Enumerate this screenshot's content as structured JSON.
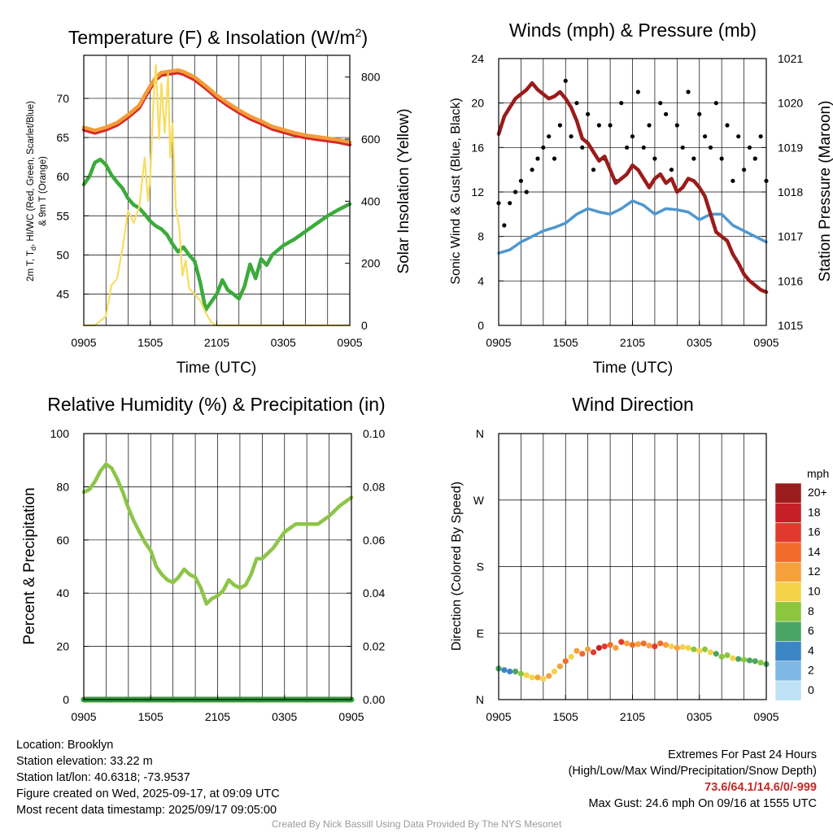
{
  "panels": {
    "temperature": {
      "title": "Temperature (F) & Insolation (W/m",
      "title_sup": "2",
      "title_close": ")",
      "ylabel_left_lines": [
        "2m T, T",
        "d",
        ", HI/WC (Red, Green, Scarlet/Blue)",
        "& 9m T (Orange)"
      ],
      "ylabel_right": "Solar Insolation (Yellow)",
      "xlabel": "Time (UTC)"
    },
    "winds": {
      "title": "Winds (mph) & Pressure (mb)",
      "ylabel_left": "Sonic Wind & Gust (Blue, Black)",
      "ylabel_right": "Station Pressure (Maroon)",
      "xlabel": "Time (UTC)"
    },
    "humidity": {
      "title": "Relative Humidity (%) & Precipitation (in)",
      "ylabel_left": "Percent & Precipitation"
    },
    "direction": {
      "title": "Wind Direction",
      "ylabel_left": "Direction (Colored By Speed)",
      "colorbar_title": "mph",
      "colorbar_labels": [
        "20+",
        "18",
        "16",
        "14",
        "12",
        "10",
        "8",
        "6",
        "4",
        "2",
        "0"
      ],
      "colorbar_colors": [
        "#9b1c1c",
        "#c62026",
        "#e03a2f",
        "#f26b2a",
        "#f6a03c",
        "#f3d34a",
        "#8cc63f",
        "#4aa564",
        "#3c86c6",
        "#7fb8e4",
        "#bfe2f6"
      ]
    }
  },
  "footer": {
    "location": "Location: Brooklyn",
    "elevation": "Station elevation: 33.22 m",
    "latlon": "Station lat/lon: 40.6318; -73.9537",
    "created": "Figure created on Wed, 2025-09-17, at 09:09 UTC",
    "recent": "Most recent data timestamp: 2025/09/17 09:05:00",
    "extremes_title": "Extremes For Past 24 Hours",
    "extremes_sub": "(High/Low/Max Wind/Precipitation/Snow Depth)",
    "extremes_values": "73.6/64.1/14.6/0/-999",
    "max_gust": "Max Gust: 24.6 mph On 09/16 at 1555 UTC",
    "credit": "Created By Nick Bassill Using Data Provided By The NYS Mesonet"
  },
  "chart_data": [
    {
      "type": "line",
      "title": "Temperature (F) & Insolation (W/m2)",
      "xlabel": "Time (UTC)",
      "ylabel": "2m T, Td, HI/WC (Red, Green, Scarlet/Blue) & 9m T (Orange)",
      "y2label": "Solar Insolation (Yellow)",
      "x_ticks": [
        "0905",
        "1505",
        "2105",
        "0305",
        "0905"
      ],
      "xlim": [
        0,
        24
      ],
      "ylim": [
        41,
        75.5
      ],
      "y_ticks": [
        45,
        50,
        55,
        60,
        65,
        70
      ],
      "y2lim": [
        0,
        870
      ],
      "y2_ticks": [
        0,
        200,
        400,
        600,
        800
      ],
      "grid": true,
      "series": [
        {
          "name": "2m T",
          "color": "#d62728",
          "axis": "left",
          "x": [
            0,
            1,
            2,
            3,
            4,
            5,
            5.5,
            6,
            6.5,
            7,
            7.5,
            8,
            8.5,
            9,
            10,
            11,
            12,
            13,
            14,
            15,
            16,
            17,
            18,
            19,
            20,
            21,
            22,
            23,
            24
          ],
          "values": [
            66.0,
            65.6,
            66.0,
            66.6,
            67.6,
            68.8,
            70.1,
            71.3,
            72.4,
            73.0,
            73.1,
            73.2,
            73.3,
            73.1,
            72.4,
            71.3,
            70.1,
            69.1,
            68.2,
            67.4,
            66.8,
            66.1,
            65.7,
            65.3,
            65.0,
            64.8,
            64.6,
            64.4,
            64.1
          ]
        },
        {
          "name": "9m T",
          "color": "#f39c38",
          "axis": "left",
          "x": [
            0,
            1,
            2,
            3,
            4,
            5,
            5.5,
            6,
            6.5,
            7,
            7.5,
            8,
            8.5,
            9,
            10,
            11,
            12,
            13,
            14,
            15,
            16,
            17,
            18,
            19,
            20,
            21,
            22,
            23,
            24
          ],
          "values": [
            66.3,
            65.9,
            66.3,
            66.9,
            67.9,
            69.1,
            70.4,
            71.6,
            72.7,
            73.3,
            73.4,
            73.5,
            73.6,
            73.4,
            72.7,
            71.6,
            70.4,
            69.4,
            68.5,
            67.7,
            67.1,
            66.4,
            66.0,
            65.6,
            65.3,
            65.1,
            64.9,
            64.7,
            64.4
          ]
        },
        {
          "name": "Td",
          "color": "#3bab3b",
          "axis": "left",
          "x": [
            0,
            0.5,
            1,
            1.5,
            2,
            2.5,
            3,
            3.5,
            4,
            4.5,
            5,
            5.5,
            6,
            6.5,
            7,
            7.5,
            8,
            8.5,
            9,
            9.5,
            10,
            10.5,
            11,
            11.5,
            12,
            12.5,
            13,
            13.5,
            14,
            14.5,
            15,
            15.5,
            16,
            16.5,
            17,
            18,
            19,
            20,
            21,
            22,
            23,
            24
          ],
          "values": [
            59.0,
            60.0,
            61.8,
            62.2,
            61.5,
            60.2,
            59.3,
            58.5,
            57.2,
            56.4,
            56.0,
            55.2,
            54.3,
            53.7,
            53.3,
            52.6,
            51.4,
            50.4,
            51.0,
            50.0,
            49.2,
            46.5,
            43.0,
            44.0,
            45.0,
            46.8,
            45.5,
            45.0,
            44.4,
            46.0,
            48.8,
            47.0,
            49.5,
            48.7,
            50.0,
            51.2,
            52.0,
            53.0,
            54.0,
            55.0,
            55.8,
            56.5
          ]
        },
        {
          "name": "Solar Insolation",
          "color": "#f7dd5f",
          "axis": "right",
          "x": [
            0,
            1,
            2,
            2.5,
            3,
            3.5,
            4,
            4.5,
            5,
            5.5,
            5.8,
            6,
            6.3,
            6.5,
            6.8,
            7,
            7.3,
            7.6,
            7.8,
            8,
            8.3,
            8.6,
            8.9,
            9.2,
            9.5,
            10,
            10.5,
            11,
            11.5,
            12,
            13,
            14,
            15,
            24
          ],
          "values": [
            0,
            0,
            30,
            130,
            150,
            250,
            370,
            330,
            380,
            540,
            400,
            480,
            730,
            840,
            600,
            780,
            620,
            810,
            540,
            650,
            380,
            320,
            160,
            210,
            120,
            100,
            80,
            40,
            10,
            0,
            0,
            0,
            0,
            0
          ]
        }
      ]
    },
    {
      "type": "line",
      "title": "Winds (mph) & Pressure (mb)",
      "xlabel": "Time (UTC)",
      "ylabel": "Sonic Wind & Gust (Blue, Black)",
      "y2label": "Station Pressure (Maroon)",
      "x_ticks": [
        "0905",
        "1505",
        "2105",
        "0305",
        "0905"
      ],
      "xlim": [
        0,
        24
      ],
      "ylim": [
        0,
        24
      ],
      "y_ticks": [
        0,
        4,
        8,
        12,
        16,
        20,
        24
      ],
      "y2lim": [
        1015,
        1021
      ],
      "y2_ticks": [
        1015,
        1016,
        1017,
        1018,
        1019,
        1020,
        1021
      ],
      "grid": true,
      "series": [
        {
          "name": "Sonic Wind",
          "color": "#4f97d0",
          "axis": "left",
          "x": [
            0,
            1,
            2,
            3,
            4,
            5,
            6,
            7,
            8,
            9,
            10,
            11,
            12,
            13,
            14,
            15,
            16,
            17,
            18,
            19,
            20,
            21,
            22,
            23,
            24
          ],
          "values": [
            6.5,
            6.8,
            7.5,
            8.0,
            8.5,
            8.8,
            9.2,
            10.0,
            10.5,
            10.2,
            10.0,
            10.5,
            11.2,
            10.8,
            10.0,
            10.5,
            10.4,
            10.2,
            9.5,
            10.0,
            10.0,
            9.0,
            8.5,
            8.0,
            7.5
          ]
        },
        {
          "name": "Gust",
          "color": "#000000",
          "axis": "left",
          "x": [
            0,
            0.5,
            1,
            1.5,
            2,
            2.5,
            3,
            3.5,
            4,
            4.5,
            5,
            5.5,
            6,
            6.5,
            7,
            7.5,
            8,
            8.5,
            9,
            9.5,
            10,
            10.5,
            11,
            11.5,
            12,
            12.5,
            13,
            13.5,
            14,
            14.5,
            15,
            15.5,
            16,
            16.5,
            17,
            17.5,
            18,
            18.5,
            19,
            19.5,
            20,
            20.5,
            21,
            21.5,
            22,
            22.5,
            23,
            23.5,
            24
          ],
          "values": [
            11,
            9,
            11,
            12,
            13,
            12,
            14,
            15,
            16,
            17,
            15,
            18,
            22,
            17,
            20,
            16,
            19,
            14,
            18,
            15,
            18,
            13,
            20,
            16,
            17,
            21,
            16,
            18,
            15,
            20,
            19,
            14,
            18,
            16,
            21,
            15,
            19,
            17,
            16,
            20,
            15,
            18,
            13,
            17,
            14,
            16,
            15,
            17,
            13
          ]
        },
        {
          "name": "Station Pressure",
          "color": "#9b1b1b",
          "axis": "right",
          "x": [
            0,
            0.5,
            1,
            1.5,
            2,
            2.5,
            3,
            3.5,
            4,
            4.5,
            5,
            5.5,
            6,
            6.5,
            7,
            7.5,
            8,
            8.5,
            9,
            9.5,
            10,
            10.5,
            11,
            11.5,
            12,
            12.5,
            13,
            13.5,
            14,
            14.5,
            15,
            15.5,
            16,
            16.5,
            17,
            17.5,
            18,
            18.5,
            19,
            19.5,
            20,
            20.5,
            21,
            21.5,
            22,
            22.5,
            23,
            23.5,
            24
          ],
          "values": [
            1019.3,
            1019.7,
            1019.9,
            1020.1,
            1020.2,
            1020.3,
            1020.45,
            1020.3,
            1020.2,
            1020.1,
            1020.15,
            1020.25,
            1020.1,
            1019.9,
            1019.6,
            1019.2,
            1019.1,
            1018.9,
            1018.7,
            1018.8,
            1018.5,
            1018.2,
            1018.3,
            1018.4,
            1018.6,
            1018.5,
            1018.3,
            1018.1,
            1018.3,
            1018.4,
            1018.2,
            1018.3,
            1018.0,
            1018.1,
            1018.3,
            1018.25,
            1018.1,
            1017.9,
            1017.5,
            1017.1,
            1017.0,
            1016.9,
            1016.6,
            1016.4,
            1016.15,
            1016.0,
            1015.9,
            1015.8,
            1015.75
          ]
        }
      ]
    },
    {
      "type": "line",
      "title": "Relative Humidity (%) & Precipitation (in)",
      "ylabel": "Percent & Precipitation",
      "x_ticks": [
        "0905",
        "1505",
        "2105",
        "0305",
        "0905"
      ],
      "xlim": [
        0,
        24
      ],
      "ylim": [
        0,
        100
      ],
      "y_ticks": [
        0,
        20,
        40,
        60,
        80,
        100
      ],
      "y2lim": [
        0,
        0.1
      ],
      "y2_ticks": [
        "0.00",
        "0.02",
        "0.04",
        "0.06",
        "0.08",
        "0.10"
      ],
      "grid": true,
      "series": [
        {
          "name": "Relative Humidity",
          "color": "#8dc547",
          "axis": "left",
          "x": [
            0,
            0.5,
            1,
            1.5,
            2,
            2.5,
            3,
            3.5,
            4,
            4.5,
            5,
            5.5,
            6,
            6.5,
            7,
            7.5,
            8,
            8.5,
            9,
            9.5,
            10,
            10.5,
            11,
            11.5,
            12,
            12.5,
            13,
            13.5,
            14,
            14.5,
            15,
            15.5,
            16,
            17,
            18,
            19,
            20,
            21,
            22,
            23,
            24
          ],
          "values": [
            78,
            79,
            82,
            86,
            88.5,
            87,
            83,
            78,
            72,
            67,
            63,
            59,
            56,
            50,
            47,
            45,
            44,
            46,
            49,
            47,
            46,
            42,
            36,
            38,
            39,
            41,
            45,
            43,
            42,
            43,
            47,
            53,
            53,
            57,
            63,
            66,
            66,
            66,
            69,
            73,
            76
          ]
        },
        {
          "name": "Precipitation",
          "color": "#2e9e3a",
          "axis": "right",
          "x": [
            0,
            24
          ],
          "values": [
            0,
            0
          ]
        }
      ]
    },
    {
      "type": "scatter",
      "title": "Wind Direction",
      "ylabel": "Direction (Colored By Speed)",
      "x_ticks": [
        "0905",
        "1505",
        "2105",
        "0305",
        "0905"
      ],
      "xlim": [
        0,
        24
      ],
      "y_ticks": [
        "N",
        "E",
        "S",
        "W",
        "N"
      ],
      "ylim": [
        0,
        360
      ],
      "colorbar": "mph",
      "grid": true,
      "series": [
        {
          "name": "Wind Direction",
          "x": [
            0,
            0.5,
            1,
            1.5,
            2,
            2.5,
            3,
            3.5,
            4,
            4.5,
            5,
            5.5,
            6,
            6.5,
            7,
            7.5,
            8,
            8.5,
            9,
            9.5,
            10,
            10.5,
            11,
            11.5,
            12,
            12.5,
            13,
            13.5,
            14,
            14.5,
            15,
            15.5,
            16,
            16.5,
            17,
            17.5,
            18,
            18.5,
            19,
            19.5,
            20,
            20.5,
            21,
            21.5,
            22,
            22.5,
            23,
            23.5,
            24
          ],
          "values": [
            42,
            40,
            38,
            38,
            35,
            33,
            30,
            30,
            28,
            32,
            38,
            45,
            52,
            58,
            66,
            62,
            68,
            64,
            70,
            72,
            74,
            70,
            78,
            76,
            74,
            75,
            76,
            73,
            72,
            76,
            74,
            72,
            70,
            71,
            70,
            68,
            66,
            68,
            64,
            62,
            58,
            60,
            56,
            55,
            54,
            53,
            52,
            50,
            48
          ],
          "speeds": [
            6,
            4,
            4,
            6,
            8,
            10,
            10,
            12,
            10,
            12,
            10,
            12,
            14,
            10,
            12,
            14,
            12,
            16,
            18,
            16,
            14,
            12,
            16,
            12,
            14,
            12,
            14,
            12,
            16,
            14,
            12,
            10,
            12,
            10,
            10,
            8,
            10,
            8,
            10,
            6,
            8,
            8,
            10,
            6,
            8,
            6,
            6,
            8,
            6
          ]
        }
      ]
    }
  ]
}
